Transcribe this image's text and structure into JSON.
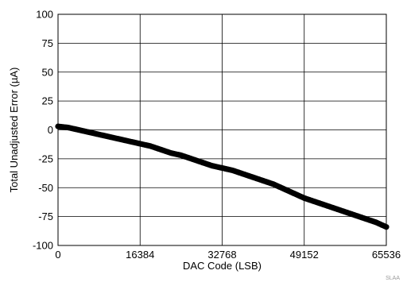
{
  "chart_data": {
    "type": "scatter",
    "title": "",
    "xlabel": "DAC Code (LSB)",
    "ylabel": "Total Unadjusted Error (µA)",
    "xlim": [
      0,
      65536
    ],
    "ylim": [
      -100,
      100
    ],
    "grid": true,
    "x_ticks": [
      0,
      16384,
      32768,
      49152,
      65536
    ],
    "y_ticks": [
      -100,
      -75,
      -50,
      -25,
      0,
      25,
      50,
      75,
      100
    ],
    "marker_color": "#000000",
    "series": [
      {
        "x": [
          0,
          2048,
          4096,
          6144,
          8192,
          10240,
          12288,
          14336,
          16384,
          18432,
          20480,
          22528,
          24576,
          26624,
          28672,
          30720,
          32768,
          34816,
          36864,
          38912,
          40960,
          43008,
          45056,
          47104,
          49152,
          51200,
          53248,
          55296,
          57344,
          59392,
          61440,
          63488,
          65536
        ],
        "y": [
          3,
          2,
          0,
          -2,
          -4,
          -6,
          -8,
          -10,
          -12,
          -14,
          -17,
          -20,
          -22,
          -25,
          -28,
          -31,
          -33,
          -35,
          -38,
          -41,
          -44,
          -47,
          -51,
          -55,
          -59,
          -62,
          -65,
          -68,
          -71,
          -74,
          -77,
          -80,
          -84
        ]
      }
    ]
  },
  "footer": {
    "tag": "SLAA"
  }
}
